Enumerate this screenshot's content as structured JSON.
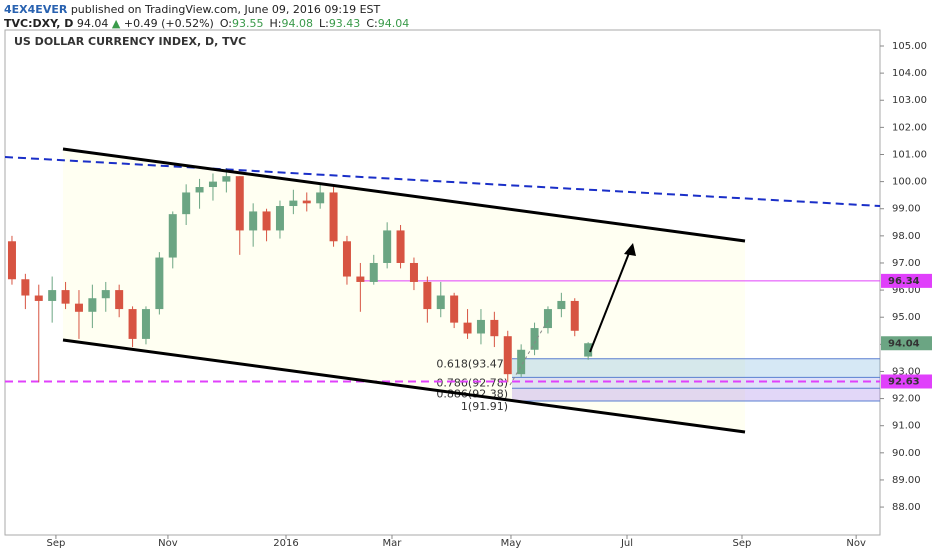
{
  "header": {
    "publisher": "4EX4EVER",
    "published": "published on TradingView.com, June 09, 2016 09:19 EST",
    "symbol": "TVC:DXY, D",
    "last": "94.04",
    "arrow": "▲",
    "change": "+0.49 (+0.52%)",
    "ohlc": [
      {
        "key": "O:",
        "value": "93.55"
      },
      {
        "key": "H:",
        "value": "94.08"
      },
      {
        "key": "L:",
        "value": "93.43"
      },
      {
        "key": "C:",
        "value": "94.04"
      }
    ]
  },
  "chart_data": {
    "type": "candlestick",
    "title": "US DOLLAR CURRENCY INDEX, D, TVC",
    "up_color": "#6ba583",
    "down_color": "#d75442",
    "open": [
      97.8,
      96.4,
      95.8,
      95.6,
      96.0,
      95.5,
      95.2,
      95.7,
      96.0,
      95.3,
      94.2,
      95.3,
      97.2,
      98.8,
      99.6,
      99.8,
      100.0,
      100.2,
      98.2,
      98.9,
      98.2,
      99.1,
      99.3,
      99.2,
      99.6,
      97.8,
      96.5,
      96.3,
      97.0,
      98.2,
      97.0,
      96.3,
      95.3,
      95.8,
      94.8,
      94.4,
      94.9,
      94.3,
      92.9,
      93.8,
      94.6,
      95.3,
      95.6,
      93.55
    ],
    "high": [
      98.0,
      96.6,
      96.2,
      96.5,
      96.3,
      96.0,
      96.2,
      96.3,
      96.2,
      95.4,
      95.4,
      97.4,
      98.9,
      99.9,
      100.1,
      100.3,
      100.5,
      100.2,
      99.2,
      99.0,
      99.3,
      99.7,
      99.6,
      99.9,
      99.8,
      98.0,
      97.0,
      97.3,
      98.5,
      98.4,
      97.2,
      96.5,
      96.3,
      95.9,
      95.3,
      95.3,
      95.2,
      94.5,
      94.0,
      94.8,
      95.4,
      95.9,
      95.7,
      94.08
    ],
    "low": [
      96.2,
      95.3,
      92.6,
      94.8,
      95.3,
      94.2,
      94.6,
      95.2,
      95.0,
      93.9,
      94.0,
      95.1,
      96.8,
      98.4,
      99.0,
      99.3,
      99.6,
      97.3,
      97.6,
      97.8,
      97.9,
      98.8,
      98.9,
      99.0,
      97.6,
      96.2,
      95.2,
      96.2,
      96.8,
      96.8,
      96.0,
      94.8,
      95.0,
      94.6,
      94.2,
      94.0,
      93.9,
      92.6,
      92.8,
      93.6,
      94.4,
      95.0,
      94.3,
      93.43
    ],
    "close": [
      96.4,
      95.8,
      95.6,
      96.0,
      95.5,
      95.2,
      95.7,
      96.0,
      95.3,
      94.2,
      95.3,
      97.2,
      98.8,
      99.6,
      99.8,
      100.0,
      100.2,
      98.2,
      98.9,
      98.2,
      99.1,
      99.3,
      99.2,
      99.6,
      97.8,
      96.5,
      96.3,
      97.0,
      98.2,
      97.0,
      96.3,
      95.3,
      95.8,
      94.8,
      94.4,
      94.9,
      94.3,
      92.9,
      93.8,
      94.6,
      95.3,
      95.6,
      94.5,
      94.04
    ],
    "xlim": [
      -0.52,
      64.78
    ],
    "xticks": [
      {
        "value": 3.28,
        "label": "Sep"
      },
      {
        "value": 11.64,
        "label": "Nov"
      },
      {
        "value": 20.45,
        "label": "2016"
      },
      {
        "value": 28.36,
        "label": "Mar"
      },
      {
        "value": 37.24,
        "label": "May"
      },
      {
        "value": 45.9,
        "label": "Jul"
      },
      {
        "value": 54.48,
        "label": "Sep"
      },
      {
        "value": 63.0,
        "label": "Nov"
      }
    ],
    "ylim": [
      86.97,
      105.59
    ],
    "yticks": [
      {
        "value": 88,
        "label": "88.00"
      },
      {
        "value": 89,
        "label": "89.00"
      },
      {
        "value": 90,
        "label": "90.00"
      },
      {
        "value": 91,
        "label": "91.00"
      },
      {
        "value": 92,
        "label": "92.00"
      },
      {
        "value": 93,
        "label": "93.00"
      },
      {
        "value": 94,
        "label": "94.00"
      },
      {
        "value": 95,
        "label": "95.00"
      },
      {
        "value": 96,
        "label": "96.00"
      },
      {
        "value": 97,
        "label": "97.00"
      },
      {
        "value": 98,
        "label": "98.00"
      },
      {
        "value": 99,
        "label": "99.00"
      },
      {
        "value": 100,
        "label": "100.00"
      },
      {
        "value": 101,
        "label": "101.00"
      },
      {
        "value": 102,
        "label": "102.00"
      },
      {
        "value": 103,
        "label": "103.00"
      },
      {
        "value": 104,
        "label": "104.00"
      },
      {
        "value": 105,
        "label": "105.00"
      }
    ],
    "price_labels": [
      {
        "value": 96.34,
        "color": "#e040fb"
      },
      {
        "value": 94.04,
        "color": "#6ba583"
      },
      {
        "value": 92.63,
        "color": "#e040fb"
      }
    ],
    "fib_levels": [
      {
        "label": "0.618(93.47)",
        "value": 93.47
      },
      {
        "label": "0.786(92.78)",
        "value": 92.78
      },
      {
        "label": "0.886(92.38)",
        "value": 92.38
      },
      {
        "label": "1(91.91)",
        "value": 91.91
      }
    ]
  }
}
